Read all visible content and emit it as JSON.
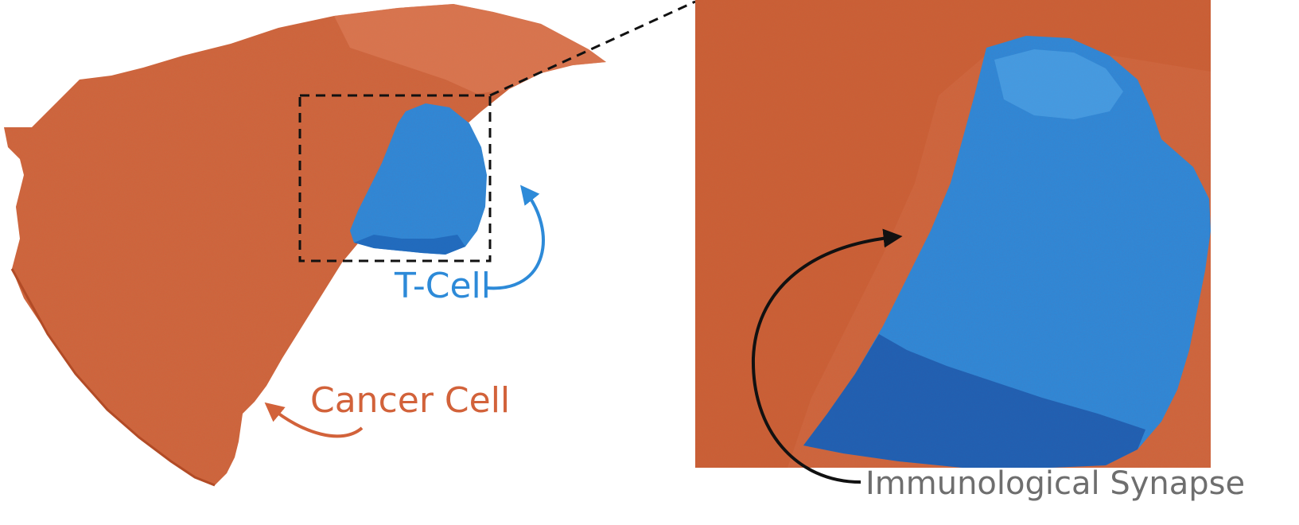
{
  "labels": {
    "t_cell": "T-Cell",
    "cancer_cell": "Cancer Cell",
    "synapse": "Immunological Synapse"
  },
  "colors": {
    "cancer_cell": "#d2623a",
    "cancer_cell_dark": "#b24b26",
    "cancer_cell_light": "#e0815c",
    "t_cell": "#2d8ad8",
    "t_cell_dark": "#1b5fb3",
    "t_cell_deep": "#153f93",
    "t_cell_light": "#5fb2ee",
    "synapse_text": "#6e6e6e",
    "arrow_black": "#111111",
    "background": "#ffffff"
  }
}
